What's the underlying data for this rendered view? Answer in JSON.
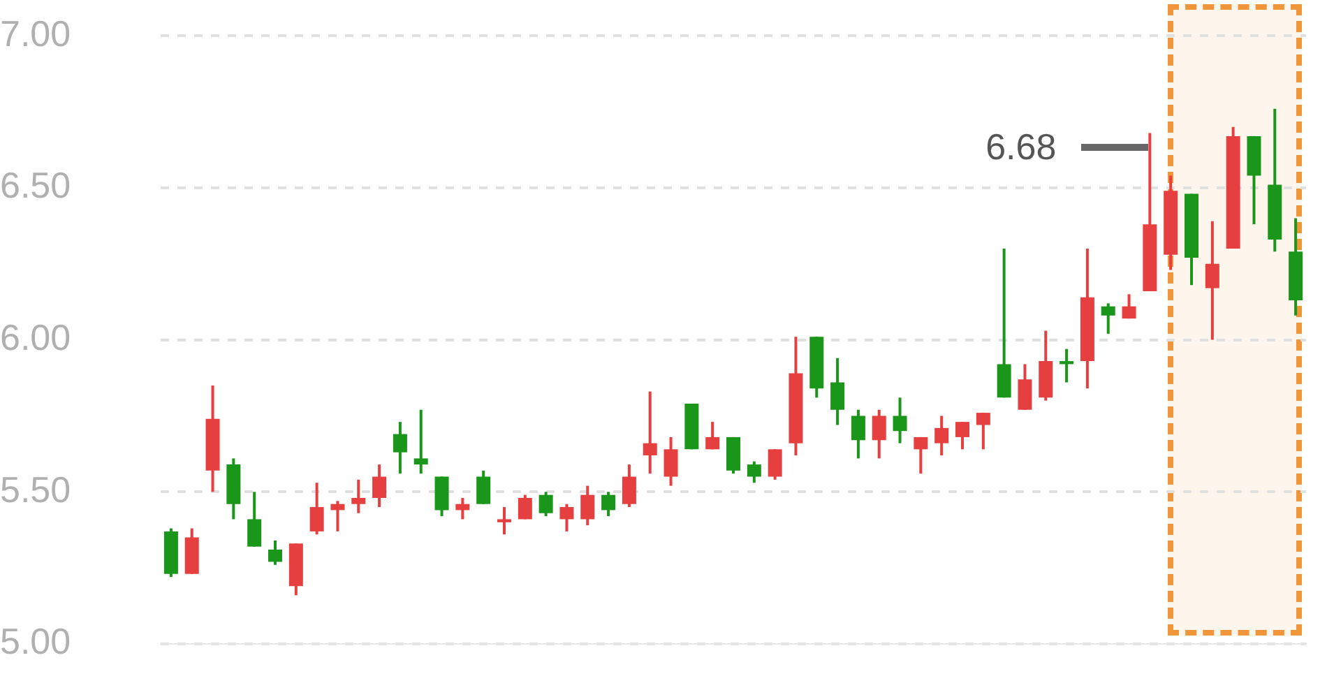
{
  "chart_data": {
    "type": "candlestick",
    "categories": [
      null,
      null,
      null,
      null,
      null,
      null,
      null,
      null,
      null,
      null,
      null,
      null,
      null,
      null,
      null,
      null,
      null,
      null,
      null,
      null,
      null,
      null,
      null,
      null,
      null,
      null,
      null,
      null,
      null,
      null,
      null,
      null,
      null,
      null,
      null,
      null,
      null,
      null,
      null,
      null,
      null,
      null,
      null,
      null,
      null,
      null,
      null,
      null,
      null,
      null,
      null,
      null,
      null,
      null,
      null
    ],
    "ohlc": [
      [
        5.37,
        5.38,
        5.22,
        5.23
      ],
      [
        5.23,
        5.38,
        5.23,
        5.35
      ],
      [
        5.57,
        5.85,
        5.5,
        5.74
      ],
      [
        5.59,
        5.61,
        5.41,
        5.46
      ],
      [
        5.41,
        5.5,
        5.32,
        5.32
      ],
      [
        5.31,
        5.34,
        5.26,
        5.27
      ],
      [
        5.19,
        5.33,
        5.16,
        5.33
      ],
      [
        5.37,
        5.53,
        5.36,
        5.45
      ],
      [
        5.44,
        5.47,
        5.37,
        5.46
      ],
      [
        5.46,
        5.54,
        5.43,
        5.48
      ],
      [
        5.48,
        5.59,
        5.45,
        5.55
      ],
      [
        5.69,
        5.73,
        5.56,
        5.63
      ],
      [
        5.61,
        5.77,
        5.56,
        5.59
      ],
      [
        5.55,
        5.55,
        5.42,
        5.44
      ],
      [
        5.44,
        5.48,
        5.41,
        5.46
      ],
      [
        5.55,
        5.57,
        5.46,
        5.46
      ],
      [
        5.4,
        5.45,
        5.36,
        5.41
      ],
      [
        5.41,
        5.49,
        5.41,
        5.48
      ],
      [
        5.49,
        5.5,
        5.42,
        5.43
      ],
      [
        5.41,
        5.46,
        5.37,
        5.45
      ],
      [
        5.41,
        5.52,
        5.39,
        5.49
      ],
      [
        5.49,
        5.5,
        5.42,
        5.44
      ],
      [
        5.46,
        5.59,
        5.45,
        5.55
      ],
      [
        5.62,
        5.83,
        5.56,
        5.66
      ],
      [
        5.55,
        5.68,
        5.52,
        5.64
      ],
      [
        5.79,
        5.79,
        5.64,
        5.64
      ],
      [
        5.64,
        5.73,
        5.64,
        5.68
      ],
      [
        5.68,
        5.68,
        5.56,
        5.57
      ],
      [
        5.59,
        5.6,
        5.53,
        5.55
      ],
      [
        5.55,
        5.64,
        5.54,
        5.64
      ],
      [
        5.66,
        6.01,
        5.62,
        5.89
      ],
      [
        6.01,
        6.01,
        5.81,
        5.84
      ],
      [
        5.86,
        5.94,
        5.72,
        5.77
      ],
      [
        5.75,
        5.77,
        5.61,
        5.67
      ],
      [
        5.67,
        5.77,
        5.61,
        5.75
      ],
      [
        5.75,
        5.81,
        5.66,
        5.7
      ],
      [
        5.64,
        5.68,
        5.56,
        5.68
      ],
      [
        5.66,
        5.75,
        5.62,
        5.71
      ],
      [
        5.68,
        5.73,
        5.64,
        5.73
      ],
      [
        5.72,
        5.76,
        5.64,
        5.76
      ],
      [
        5.92,
        6.3,
        5.81,
        5.81
      ],
      [
        5.77,
        5.92,
        5.77,
        5.87
      ],
      [
        5.81,
        6.03,
        5.8,
        5.93
      ],
      [
        5.93,
        5.97,
        5.86,
        5.92
      ],
      [
        5.93,
        6.3,
        5.84,
        6.14
      ],
      [
        6.11,
        6.12,
        6.02,
        6.08
      ],
      [
        6.07,
        6.15,
        6.07,
        6.11
      ],
      [
        6.16,
        6.68,
        6.16,
        6.38
      ],
      [
        6.28,
        6.54,
        6.23,
        6.49
      ],
      [
        6.48,
        6.48,
        6.18,
        6.27
      ],
      [
        6.17,
        6.39,
        6.0,
        6.25
      ],
      [
        6.3,
        6.7,
        6.3,
        6.67
      ],
      [
        6.67,
        6.67,
        6.38,
        6.54
      ],
      [
        6.51,
        6.76,
        6.29,
        6.33
      ],
      [
        6.29,
        6.4,
        6.08,
        6.13
      ]
    ],
    "colors": [
      "#1a961a",
      "#e63f3f",
      "#e63f3f",
      "#1a961a",
      "#1a961a",
      "#1a961a",
      "#e63f3f",
      "#e63f3f",
      "#e63f3f",
      "#e63f3f",
      "#e63f3f",
      "#1a961a",
      "#1a961a",
      "#1a961a",
      "#e63f3f",
      "#1a961a",
      "#e63f3f",
      "#e63f3f",
      "#1a961a",
      "#e63f3f",
      "#e63f3f",
      "#1a961a",
      "#e63f3f",
      "#e63f3f",
      "#e63f3f",
      "#1a961a",
      "#e63f3f",
      "#1a961a",
      "#1a961a",
      "#e63f3f",
      "#e63f3f",
      "#1a961a",
      "#1a961a",
      "#1a961a",
      "#e63f3f",
      "#1a961a",
      "#e63f3f",
      "#e63f3f",
      "#e63f3f",
      "#e63f3f",
      "#1a961a",
      "#e63f3f",
      "#e63f3f",
      "#1a961a",
      "#e63f3f",
      "#1a961a",
      "#e63f3f",
      "#e63f3f",
      "#e63f3f",
      "#1a961a",
      "#e63f3f",
      "#e63f3f",
      "#1a961a",
      "#1a961a",
      "#1a961a"
    ],
    "ylim": [
      5,
      7
    ],
    "yticks": [
      {
        "value": 5,
        "label": "5.00"
      },
      {
        "value": 5.5,
        "label": "5.50"
      },
      {
        "value": 6,
        "label": "6.00"
      },
      {
        "value": 6.5,
        "label": "6.50"
      },
      {
        "value": 7,
        "label": "7.00"
      }
    ],
    "grid": "y",
    "tick_labels": "y",
    "legend": false,
    "annotations": [
      "6.68"
    ]
  }
}
